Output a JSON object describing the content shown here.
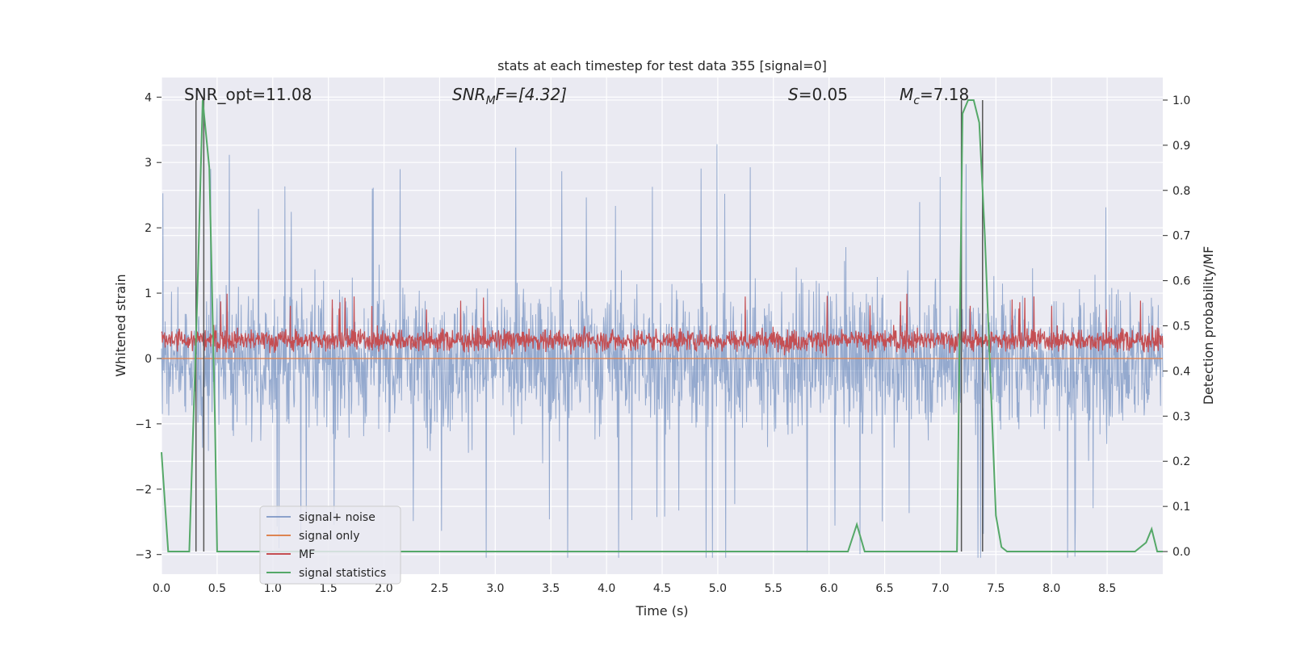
{
  "chart_data": {
    "type": "line",
    "title": "stats at each timestep for test data 355 [signal=0]",
    "xlabel": "Time (s)",
    "ylabel_left": "Whitened strain",
    "ylabel_right": "Detection probability/MF",
    "xlim": [
      0.0,
      9.0
    ],
    "ylim_left": [
      -3.3,
      4.3
    ],
    "ylim_right": [
      -0.05,
      1.05
    ],
    "x_ticks": [
      "0.0",
      "0.5",
      "1.0",
      "1.5",
      "2.0",
      "2.5",
      "3.0",
      "3.5",
      "4.0",
      "4.5",
      "5.0",
      "5.5",
      "6.0",
      "6.5",
      "7.0",
      "7.5",
      "8.0",
      "8.5"
    ],
    "y_ticks_left": [
      "4",
      "3",
      "2",
      "1",
      "0",
      "−1",
      "−2",
      "−3"
    ],
    "y_ticks_right": [
      "1.0",
      "0.9",
      "0.8",
      "0.7",
      "0.6",
      "0.5",
      "0.4",
      "0.3",
      "0.2",
      "0.1",
      "0.0"
    ],
    "grid": true,
    "legend_position": "lower-left",
    "annotations": {
      "snr_opt": "SNR_opt=11.08",
      "snr_mf_base": "SNR",
      "snr_mf_sub": "M",
      "snr_mf_rest": "F=[4.32]",
      "s_stat_var": "S",
      "s_stat_rest": "=0.05",
      "mc_var": "M",
      "mc_sub": "c",
      "mc_rest": "=7.18"
    },
    "vertical_lines_s": [
      0.31,
      0.38,
      7.19,
      7.38
    ],
    "series": [
      {
        "name": "signal+ noise",
        "color": "#4c72b0",
        "axis": "left",
        "style": "dense noise, amplitude about ±1.5, peaks near ±3 to 4"
      },
      {
        "name": "signal only",
        "color": "#dd8452",
        "axis": "left",
        "values_const": 0.0
      },
      {
        "name": "MF",
        "color": "#c44e52",
        "axis": "left",
        "style": "dense noise band roughly 0.0 to 0.7"
      },
      {
        "name": "signal statistics",
        "color": "#55a868",
        "axis": "right",
        "x": [
          0.0,
          0.06,
          0.1,
          0.25,
          0.32,
          0.37,
          0.43,
          0.48,
          0.5,
          0.55,
          6.0,
          6.17,
          6.25,
          6.32,
          6.4,
          6.9,
          7.15,
          7.2,
          7.25,
          7.3,
          7.35,
          7.4,
          7.5,
          7.55,
          7.6,
          8.0,
          8.75,
          8.85,
          8.9,
          8.95,
          9.0
        ],
        "values": [
          0.22,
          0.0,
          0.0,
          0.0,
          0.55,
          1.0,
          0.85,
          0.3,
          0.0,
          0.0,
          0.0,
          0.0,
          0.06,
          0.0,
          0.0,
          0.0,
          0.0,
          0.97,
          1.0,
          1.0,
          0.95,
          0.7,
          0.08,
          0.01,
          0.0,
          0.0,
          0.0,
          0.02,
          0.05,
          0.0,
          0.0
        ]
      }
    ]
  }
}
